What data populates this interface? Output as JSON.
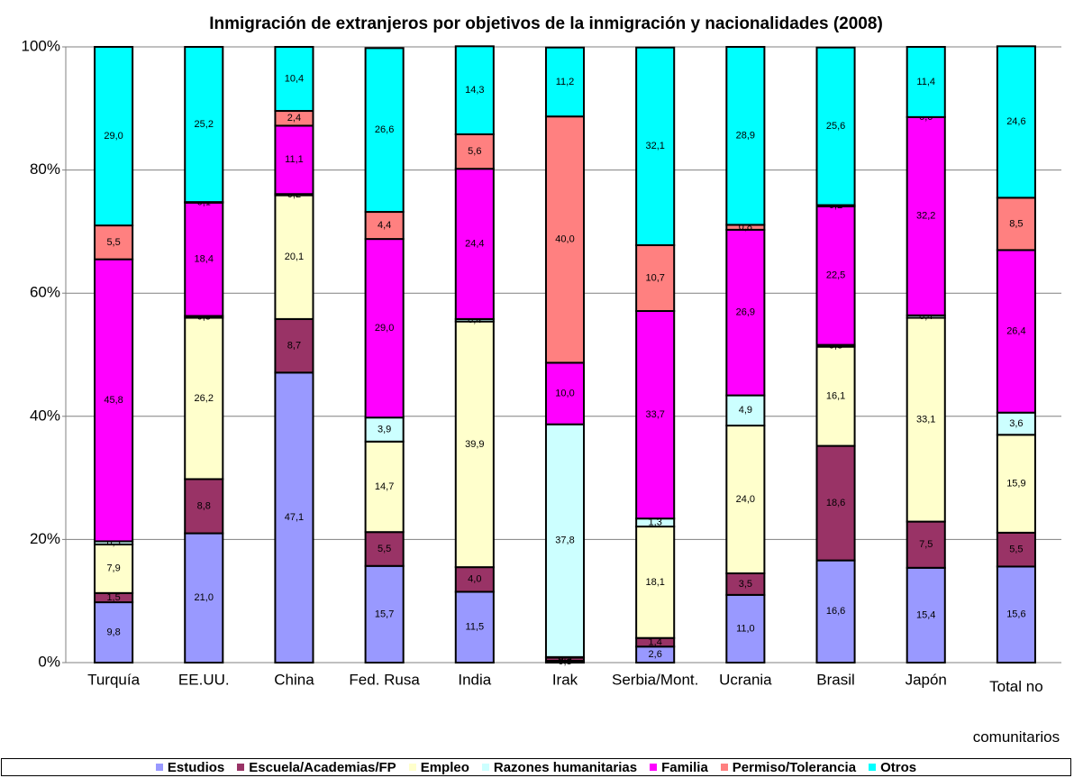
{
  "chart_data": {
    "type": "stacked_bar_100",
    "title": "Inmigración de extranjeros por objetivos de la inmigración y nacionalidades (2008)",
    "categories": [
      "Turquía",
      "EE.UU.",
      "China",
      "Fed. Rusa",
      "India",
      "Irak",
      "Serbia/Mont.",
      "Ucrania",
      "Brasil",
      "Japón",
      "Total no comunitarios"
    ],
    "ylim": [
      0,
      100
    ],
    "yticks": [
      {
        "value": 0,
        "label": "0%"
      },
      {
        "value": 20,
        "label": "20%"
      },
      {
        "value": 40,
        "label": "40%"
      },
      {
        "value": 60,
        "label": "60%"
      },
      {
        "value": 80,
        "label": "80%"
      },
      {
        "value": 100,
        "label": "100%"
      }
    ],
    "grid": true,
    "legend": "bottom",
    "series": [
      {
        "name": "Estudios",
        "color": "#9999ff",
        "values": [
          9.8,
          21.0,
          47.1,
          15.7,
          11.5,
          0.3,
          2.6,
          11.0,
          16.6,
          15.4,
          15.6
        ],
        "value_labels": [
          "9,8",
          "21,0",
          "47,1",
          "15,7",
          "11,5",
          "0,3",
          "2,6",
          "11,0",
          "16,6",
          "15,4",
          "15,6"
        ]
      },
      {
        "name": "Escuela/Academias/FP",
        "color": "#993366",
        "values": [
          1.5,
          8.8,
          8.7,
          5.5,
          4.0,
          0.5,
          1.4,
          3.5,
          18.6,
          7.5,
          5.5
        ],
        "value_labels": [
          "1,5",
          "8,8",
          "8,7",
          "5,5",
          "4,0",
          "0,5",
          "1,4",
          "3,5",
          "18,6",
          "7,5",
          "5,5"
        ]
      },
      {
        "name": "Empleo",
        "color": "#ffffcc",
        "values": [
          7.9,
          26.2,
          20.1,
          14.7,
          39.9,
          0.1,
          18.1,
          24.0,
          16.1,
          33.1,
          15.9
        ],
        "value_labels": [
          "7,9",
          "26,2",
          "20,1",
          "14,7",
          "39,9",
          "0,1",
          "18,1",
          "24,0",
          "16,1",
          "33,1",
          "15,9"
        ]
      },
      {
        "name": "Razones humanitarias",
        "color": "#ccffff",
        "values": [
          0.5,
          0.3,
          0.2,
          3.9,
          0.4,
          37.8,
          1.3,
          4.9,
          0.3,
          0.4,
          3.6
        ],
        "value_labels": [
          "0,5",
          "0,3",
          "0,2",
          "3,9",
          "0,4",
          "37,8",
          "1,3",
          "4,9",
          "0,3",
          "0,4",
          "3,6"
        ]
      },
      {
        "name": "Familia",
        "color": "#ff00ff",
        "values": [
          45.8,
          18.4,
          11.1,
          29.0,
          24.4,
          10.0,
          33.7,
          26.9,
          22.5,
          32.2,
          26.4
        ],
        "value_labels": [
          "45,8",
          "18,4",
          "11,1",
          "29,0",
          "24,4",
          "10,0",
          "33,7",
          "26,9",
          "22,5",
          "32,2",
          "26,4"
        ]
      },
      {
        "name": "Permiso/Tolerancia",
        "color": "#ff8080",
        "values": [
          5.5,
          0.1,
          2.4,
          4.4,
          5.6,
          40.0,
          10.7,
          0.8,
          0.2,
          0.0,
          8.5
        ],
        "value_labels": [
          "5,5",
          "0,1",
          "2,4",
          "4,4",
          "5,6",
          "40,0",
          "10,7",
          "0,8",
          "0,2",
          "0,0",
          "8,5"
        ]
      },
      {
        "name": "Otros",
        "color": "#00ffff",
        "values": [
          29.0,
          25.2,
          10.4,
          26.6,
          14.3,
          11.2,
          32.1,
          28.9,
          25.6,
          11.4,
          24.6
        ],
        "value_labels": [
          "29,0",
          "25,2",
          "10,4",
          "26,6",
          "14,3",
          "11,2",
          "32,1",
          "28,9",
          "25,6",
          "11,4",
          "24,6"
        ]
      }
    ]
  }
}
